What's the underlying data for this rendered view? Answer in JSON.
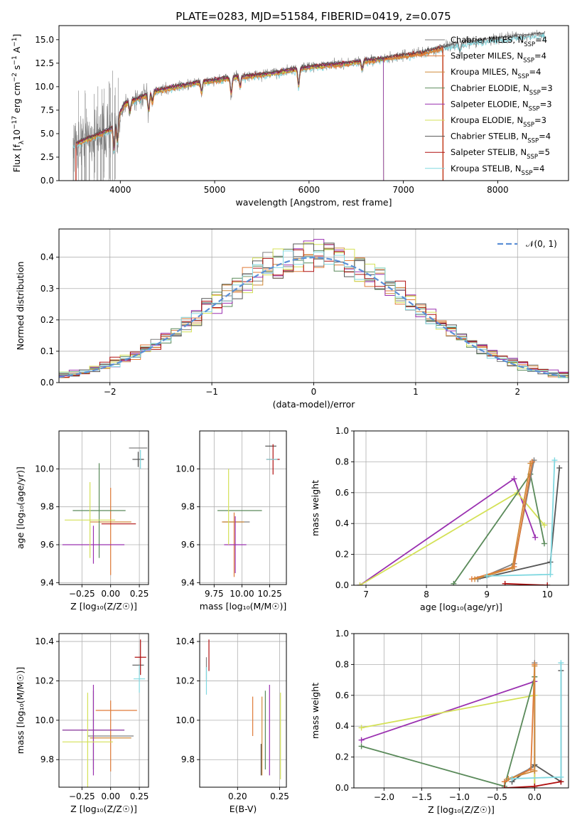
{
  "figure_title": "PLATE=0283, MJD=51584, FIBERID=0419, z=0.075",
  "colors": {
    "chab_miles": "#7f7f7f",
    "salp_miles": "#e07b39",
    "krou_miles": "#d08a3a",
    "chab_elodie": "#5a8a5a",
    "salp_elodie": "#9a30b0",
    "krou_elodie": "#d4e157",
    "chab_stelib": "#555555",
    "salp_stelib": "#b01010",
    "krou_stelib": "#80d8e0",
    "normal_curve": "#5b8fd6",
    "grid": "#b0b0b0"
  },
  "legend": [
    {
      "key": "chab_miles",
      "label": "Chabrier MILES, N",
      "sub": "SSP",
      "eq": "=4"
    },
    {
      "key": "salp_miles",
      "label": "Salpeter MILES, N",
      "sub": "SSP",
      "eq": "=4"
    },
    {
      "key": "krou_miles",
      "label": "Kroupa MILES, N",
      "sub": "SSP",
      "eq": "=4"
    },
    {
      "key": "chab_elodie",
      "label": "Chabrier ELODIE, N",
      "sub": "SSP",
      "eq": "=3"
    },
    {
      "key": "salp_elodie",
      "label": "Salpeter ELODIE, N",
      "sub": "SSP",
      "eq": "=3"
    },
    {
      "key": "krou_elodie",
      "label": "Kroupa ELODIE, N",
      "sub": "SSP",
      "eq": "=3"
    },
    {
      "key": "chab_stelib",
      "label": "Chabrier STELIB, N",
      "sub": "SSP",
      "eq": "=4"
    },
    {
      "key": "salp_stelib",
      "label": "Salpeter STELIB, N",
      "sub": "SSP",
      "eq": "=5"
    },
    {
      "key": "krou_stelib",
      "label": "Kroupa STELIB, N",
      "sub": "SSP",
      "eq": "=4"
    }
  ],
  "chart_data": [
    {
      "id": "spectrum",
      "type": "line",
      "xlabel": "wavelength [Angstrom, rest frame]",
      "ylabel": "Flux [f",
      "ylabel_parts": [
        "Flux [f",
        "λ",
        "10",
        "−17",
        " erg cm",
        "−2",
        " s",
        "−1",
        " A",
        "−1",
        "]"
      ],
      "xlim": [
        3350,
        8750
      ],
      "ylim": [
        0,
        16.5
      ],
      "xticks": [
        4000,
        5000,
        6000,
        7000,
        8000
      ],
      "xtick_labels": [
        "4000",
        "5000",
        "6000",
        "7000",
        "8000"
      ],
      "yticks": [
        0,
        2.5,
        5,
        7.5,
        10,
        12.5,
        15
      ],
      "ytick_labels": [
        "0.0",
        "2.5",
        "5.0",
        "7.5",
        "10.0",
        "12.5",
        "15.0"
      ],
      "grid": false,
      "data_start": 3500,
      "data_end": 8500,
      "continuum_anchors": [
        [
          3500,
          3.8
        ],
        [
          3900,
          5.5
        ],
        [
          4050,
          8.2
        ],
        [
          4400,
          9.6
        ],
        [
          4800,
          10.4
        ],
        [
          5200,
          11.0
        ],
        [
          5600,
          11.4
        ],
        [
          6000,
          12.1
        ],
        [
          6400,
          12.5
        ],
        [
          6800,
          13.0
        ],
        [
          7200,
          13.6
        ],
        [
          7600,
          14.6
        ],
        [
          8000,
          15.1
        ],
        [
          8500,
          15.6
        ]
      ],
      "absorption_lines": [
        [
          3934,
          3.5
        ],
        [
          3969,
          3.2
        ],
        [
          4102,
          1.4
        ],
        [
          4300,
          2.2
        ],
        [
          4340,
          1.2
        ],
        [
          4861,
          1.3
        ],
        [
          5175,
          2.0
        ],
        [
          5270,
          1.2
        ],
        [
          5890,
          2.2
        ],
        [
          6563,
          1.0
        ],
        [
          7600,
          1.2
        ]
      ],
      "model_ends": [
        {
          "key": "salp_miles",
          "x": 7420,
          "ymin": 0
        },
        {
          "key": "krou_miles",
          "x": 7420,
          "ymin": 0
        },
        {
          "key": "krou_elodie",
          "x": 6790,
          "ymin": 0
        },
        {
          "key": "chab_elodie",
          "x": 6790,
          "ymin": 0
        },
        {
          "key": "salp_elodie",
          "x": 6790,
          "ymin": 0
        },
        {
          "key": "salp_stelib",
          "x": 7420,
          "ymin": 0
        }
      ]
    },
    {
      "id": "residuals",
      "type": "histogram",
      "xlabel": "(data-model)/error",
      "ylabel": "Normed distribution",
      "xlim": [
        -2.5,
        2.5
      ],
      "ylim": [
        0,
        0.49
      ],
      "xticks": [
        -2,
        -1,
        0,
        1,
        2
      ],
      "xtick_labels": [
        "−2",
        "−1",
        "0",
        "1",
        "2"
      ],
      "yticks": [
        0,
        0.1,
        0.2,
        0.3,
        0.4
      ],
      "ytick_labels": [
        "0.0",
        "0.1",
        "0.2",
        "0.3",
        "0.4"
      ],
      "grid": true,
      "legend_label": "𝒩(0, 1)",
      "bin_width": 0.1,
      "bin_start": -2.5,
      "series_scatter": [
        [
          0.9,
          1.1,
          0.95,
          1.05,
          0.92,
          1.08,
          1.0,
          0.97,
          1.03
        ],
        [
          1.06,
          0.93,
          1.0,
          0.96,
          1.1,
          0.9,
          1.04,
          1.02,
          0.95
        ]
      ]
    },
    {
      "id": "age_vs_Z",
      "type": "scatter",
      "xlabel": "Z [log₁₀(Z/Z☉)]",
      "ylabel": "age  [log₁₀(age/yr)]",
      "xlim": [
        -0.45,
        0.33
      ],
      "ylim": [
        9.39,
        10.2
      ],
      "xticks": [
        -0.25,
        0,
        0.25
      ],
      "xtick_labels": [
        "−0.25",
        "0.00",
        "0.25"
      ],
      "yticks": [
        9.4,
        9.6,
        9.8,
        10.0
      ],
      "ytick_labels": [
        "9.4",
        "9.6",
        "9.8",
        "10.0"
      ],
      "grid": true,
      "crosses": [
        {
          "key": "chab_miles",
          "x": 0.24,
          "y": 10.11,
          "dx": 0.08,
          "dy": 0.0
        },
        {
          "key": "salp_miles",
          "x": 0.0,
          "y": 9.67,
          "dx": 0.0,
          "dy": 0.23
        },
        {
          "key": "krou_miles",
          "x": 0.0,
          "y": 9.72,
          "dx": 0.18,
          "dy": 0.0
        },
        {
          "key": "chab_elodie",
          "x": -0.1,
          "y": 9.78,
          "dx": 0.23,
          "dy": 0.25
        },
        {
          "key": "salp_elodie",
          "x": -0.15,
          "y": 9.6,
          "dx": 0.27,
          "dy": 0.1
        },
        {
          "key": "krou_elodie",
          "x": -0.18,
          "y": 9.73,
          "dx": 0.22,
          "dy": 0.2
        },
        {
          "key": "chab_stelib",
          "x": 0.24,
          "y": 10.05,
          "dx": 0.05,
          "dy": 0.04
        },
        {
          "key": "salp_stelib",
          "x": 0.07,
          "y": 9.71,
          "dx": 0.15,
          "dy": 0.0
        },
        {
          "key": "krou_stelib",
          "x": 0.26,
          "y": 10.05,
          "dx": 0.0,
          "dy": 0.05
        }
      ]
    },
    {
      "id": "age_vs_mass",
      "type": "scatter",
      "xlabel": "mass [log₁₀(M/M☉)]",
      "ylabel": "",
      "xlim": [
        9.62,
        10.4
      ],
      "ylim": [
        9.39,
        10.2
      ],
      "xticks": [
        9.75,
        10.0,
        10.25
      ],
      "xtick_labels": [
        "9.75",
        "10.00",
        "10.25"
      ],
      "yticks": [
        9.4,
        9.6,
        9.8,
        10.0
      ],
      "ytick_labels": [
        "9.4",
        "9.6",
        "9.8",
        "10.0"
      ],
      "grid": true,
      "crosses": [
        {
          "key": "chab_miles",
          "x": 9.95,
          "y": 9.72,
          "dx": 0.12,
          "dy": 0.0
        },
        {
          "key": "salp_miles",
          "x": 9.93,
          "y": 9.6,
          "dx": 0.0,
          "dy": 0.17
        },
        {
          "key": "krou_miles",
          "x": 9.92,
          "y": 9.72,
          "dx": 0.1,
          "dy": 0.0
        },
        {
          "key": "chab_elodie",
          "x": 9.98,
          "y": 9.78,
          "dx": 0.2,
          "dy": 0.0
        },
        {
          "key": "salp_elodie",
          "x": 9.94,
          "y": 9.6,
          "dx": 0.1,
          "dy": 0.15
        },
        {
          "key": "krou_elodie",
          "x": 9.88,
          "y": 9.8,
          "dx": 0.0,
          "dy": 0.2
        },
        {
          "key": "chab_stelib",
          "x": 10.26,
          "y": 10.12,
          "dx": 0.05,
          "dy": 0.0
        },
        {
          "key": "salp_stelib",
          "x": 10.28,
          "y": 10.05,
          "dx": 0.06,
          "dy": 0.08
        },
        {
          "key": "krou_stelib",
          "x": 10.27,
          "y": 10.05,
          "dx": 0.05,
          "dy": 0.0
        }
      ]
    },
    {
      "id": "weight_vs_age",
      "type": "line",
      "xlabel": "age  [log₁₀(age/yr)]",
      "ylabel": "mass weight",
      "xlim": [
        6.8,
        10.35
      ],
      "ylim": [
        0,
        1.0
      ],
      "xticks": [
        7,
        8,
        9,
        10
      ],
      "xtick_labels": [
        "7",
        "8",
        "9",
        "10"
      ],
      "yticks": [
        0,
        0.2,
        0.4,
        0.6,
        0.8,
        1.0
      ],
      "ytick_labels": [
        "0.0",
        "0.2",
        "0.4",
        "0.6",
        "0.8",
        "1.0"
      ],
      "grid": true,
      "series": [
        {
          "key": "salp_elodie",
          "x": [
            6.9,
            9.45,
            9.8
          ],
          "y": [
            0.0,
            0.69,
            0.31
          ]
        },
        {
          "key": "krou_elodie",
          "x": [
            6.9,
            9.5,
            9.95
          ],
          "y": [
            0.0,
            0.6,
            0.39
          ]
        },
        {
          "key": "chab_elodie",
          "x": [
            8.45,
            9.72,
            9.95
          ],
          "y": [
            0.01,
            0.72,
            0.27
          ]
        },
        {
          "key": "chab_stelib",
          "x": [
            8.85,
            10.05,
            10.2
          ],
          "y": [
            0.04,
            0.15,
            0.76
          ]
        },
        {
          "key": "salp_stelib",
          "x": [
            9.3,
            10.0
          ],
          "y": [
            0.01,
            0.0
          ]
        },
        {
          "key": "chab_miles",
          "x": [
            8.85,
            9.45,
            9.78
          ],
          "y": [
            0.04,
            0.14,
            0.81
          ]
        },
        {
          "key": "salp_miles",
          "x": [
            8.75,
            9.45,
            9.75
          ],
          "y": [
            0.04,
            0.12,
            0.8
          ]
        },
        {
          "key": "krou_miles",
          "x": [
            8.8,
            9.42,
            9.72
          ],
          "y": [
            0.04,
            0.11,
            0.79
          ]
        },
        {
          "key": "krou_stelib",
          "x": [
            9.0,
            10.05,
            10.12
          ],
          "y": [
            0.06,
            0.07,
            0.81
          ]
        }
      ]
    },
    {
      "id": "mass_vs_Z",
      "type": "scatter",
      "xlabel": "Z [log₁₀(Z/Z☉)]",
      "ylabel": "mass [log₁₀(M/M☉)]",
      "xlim": [
        -0.45,
        0.33
      ],
      "ylim": [
        9.66,
        10.44
      ],
      "xticks": [
        -0.25,
        0,
        0.25
      ],
      "xtick_labels": [
        "−0.25",
        "0.00",
        "0.25"
      ],
      "yticks": [
        9.8,
        10.0,
        10.2,
        10.4
      ],
      "ytick_labels": [
        "9.8",
        "10.0",
        "10.2",
        "10.4"
      ],
      "grid": true,
      "crosses": [
        {
          "key": "chab_miles",
          "x": 0.0,
          "y": 9.92,
          "dx": 0.2,
          "dy": 0.0
        },
        {
          "key": "salp_miles",
          "x": 0.0,
          "y": 9.92,
          "dx": 0.0,
          "dy": 0.18
        },
        {
          "key": "krou_miles",
          "x": 0.0,
          "y": 9.91,
          "dx": 0.18,
          "dy": 0.0
        },
        {
          "key": "chab_elodie",
          "x": -0.15,
          "y": 9.95,
          "dx": 0.27,
          "dy": 0.2
        },
        {
          "key": "salp_elodie",
          "x": -0.15,
          "y": 9.95,
          "dx": 0.27,
          "dy": 0.23
        },
        {
          "key": "krou_elodie",
          "x": -0.2,
          "y": 9.89,
          "dx": 0.22,
          "dy": 0.25
        },
        {
          "key": "chab_stelib",
          "x": 0.24,
          "y": 10.28,
          "dx": 0.05,
          "dy": 0.0
        },
        {
          "key": "salp_stelib",
          "x": 0.26,
          "y": 10.32,
          "dx": 0.05,
          "dy": 0.09
        },
        {
          "key": "krou_stelib",
          "x": 0.25,
          "y": 10.21,
          "dx": 0.05,
          "dy": 0.07
        },
        {
          "key": "salp_miles2",
          "color_key": "salp_miles",
          "x": 0.05,
          "y": 10.05,
          "dx": 0.18,
          "dy": 0.0
        }
      ]
    },
    {
      "id": "mass_vs_ebv",
      "type": "scatter",
      "xlabel": "E(B-V)",
      "ylabel": "",
      "xlim": [
        0.155,
        0.258
      ],
      "ylim": [
        9.66,
        10.44
      ],
      "xticks": [
        0.2,
        0.25
      ],
      "xtick_labels": [
        "0.20",
        "0.25"
      ],
      "yticks": [
        9.8,
        10.0,
        10.2,
        10.4
      ],
      "ytick_labels": [
        "9.8",
        "10.0",
        "10.2",
        "10.4"
      ],
      "grid": true,
      "crosses": [
        {
          "key": "chab_miles",
          "x": 0.163,
          "y": 10.26,
          "dx": 0.0,
          "dy": 0.06
        },
        {
          "key": "salp_stelib",
          "x": 0.166,
          "y": 10.33,
          "dx": 0.0,
          "dy": 0.08
        },
        {
          "key": "krou_stelib",
          "x": 0.163,
          "y": 10.2,
          "dx": 0.0,
          "dy": 0.07
        },
        {
          "key": "salp_miles",
          "x": 0.218,
          "y": 10.02,
          "dx": 0.0,
          "dy": 0.1
        },
        {
          "key": "krou_miles",
          "x": 0.229,
          "y": 9.92,
          "dx": 0.0,
          "dy": 0.2
        },
        {
          "key": "chab_elodie",
          "x": 0.233,
          "y": 9.95,
          "dx": 0.0,
          "dy": 0.2
        },
        {
          "key": "salp_elodie",
          "x": 0.238,
          "y": 9.95,
          "dx": 0.0,
          "dy": 0.23
        },
        {
          "key": "krou_elodie",
          "x": 0.251,
          "y": 9.92,
          "dx": 0.0,
          "dy": 0.22
        },
        {
          "key": "chab_stelib",
          "x": 0.228,
          "y": 9.8,
          "dx": 0.0,
          "dy": 0.08
        }
      ]
    },
    {
      "id": "weight_vs_Z",
      "type": "line",
      "xlabel": "Z [log₁₀(Z/Z☉)]",
      "ylabel": "mass weight",
      "xlim": [
        -2.4,
        0.45
      ],
      "ylim": [
        0,
        1.0
      ],
      "xticks": [
        -2.0,
        -1.5,
        -1.0,
        -0.5,
        0.0
      ],
      "xtick_labels": [
        "−2.0",
        "−1.5",
        "−1.0",
        "−0.5",
        "0.0"
      ],
      "yticks": [
        0,
        0.2,
        0.4,
        0.6,
        0.8,
        1.0
      ],
      "ytick_labels": [
        "0.0",
        "0.2",
        "0.4",
        "0.6",
        "0.8",
        "1.0"
      ],
      "grid": true,
      "series": [
        {
          "key": "salp_elodie",
          "x": [
            -2.3,
            0.0,
            0.0
          ],
          "y": [
            0.31,
            0.69,
            0.0
          ]
        },
        {
          "key": "krou_elodie",
          "x": [
            -2.3,
            0.0,
            0.0
          ],
          "y": [
            0.39,
            0.6,
            0.0
          ]
        },
        {
          "key": "chab_elodie",
          "x": [
            -2.3,
            -0.4,
            0.0
          ],
          "y": [
            0.27,
            0.01,
            0.72
          ]
        },
        {
          "key": "chab_stelib",
          "x": [
            -0.3,
            0.0,
            0.35,
            0.35
          ],
          "y": [
            0.04,
            0.15,
            0.04,
            0.76
          ]
        },
        {
          "key": "salp_stelib",
          "x": [
            -0.4,
            0.0,
            0.35
          ],
          "y": [
            0.0,
            0.01,
            0.04
          ]
        },
        {
          "key": "chab_miles",
          "x": [
            -0.4,
            0.0,
            0.0
          ],
          "y": [
            0.04,
            0.14,
            0.81
          ]
        },
        {
          "key": "salp_miles",
          "x": [
            -0.4,
            -0.05,
            0.0
          ],
          "y": [
            0.04,
            0.12,
            0.8
          ]
        },
        {
          "key": "krou_miles",
          "x": [
            -0.35,
            0.0,
            0.0
          ],
          "y": [
            0.06,
            0.11,
            0.79
          ]
        },
        {
          "key": "krou_stelib",
          "x": [
            -0.3,
            0.35,
            0.35
          ],
          "y": [
            0.06,
            0.07,
            0.81
          ]
        }
      ]
    }
  ]
}
